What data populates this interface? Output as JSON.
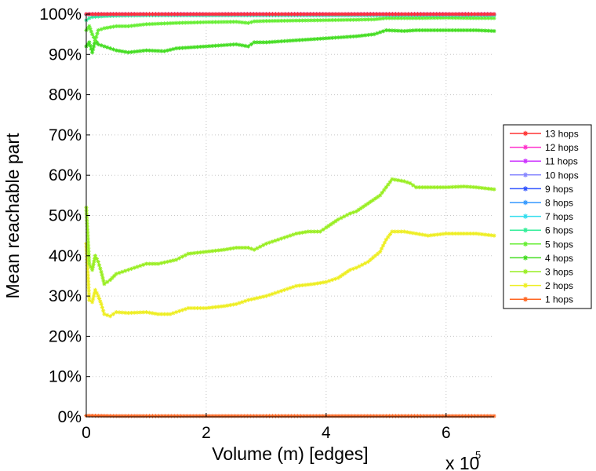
{
  "chart_data": {
    "type": "line",
    "title": "",
    "xlabel": "Volume (m) [edges]",
    "ylabel": "Mean reachable part",
    "x_multiplier_label": "x 10",
    "x_multiplier_exp": "5",
    "xlim": [
      0,
      6.8
    ],
    "ylim": [
      0,
      100
    ],
    "x_unit_scale": 100000,
    "xticks": [
      0,
      2,
      4,
      6
    ],
    "xtick_labels": [
      "0",
      "2",
      "4",
      "6"
    ],
    "yticks": [
      0,
      10,
      20,
      30,
      40,
      50,
      60,
      70,
      80,
      90,
      100
    ],
    "ytick_labels": [
      "0%",
      "10%",
      "20%",
      "30%",
      "40%",
      "50%",
      "60%",
      "70%",
      "80%",
      "90%",
      "100%"
    ],
    "grid": true,
    "legend_position": "right",
    "series": [
      {
        "name": "13 hops",
        "color": "#ff3333",
        "x": [
          0.0,
          0.5,
          1.0,
          2.0,
          3.0,
          4.0,
          5.0,
          6.0,
          6.8
        ],
        "values": [
          100,
          100,
          100,
          100,
          100,
          100,
          100,
          100,
          100
        ]
      },
      {
        "name": "12 hops",
        "color": "#ff33cc",
        "x": [
          0.0,
          0.5,
          1.0,
          2.0,
          3.0,
          4.0,
          5.0,
          6.0,
          6.8
        ],
        "values": [
          100,
          100,
          100,
          100,
          100,
          100,
          100,
          100,
          100
        ]
      },
      {
        "name": "11 hops",
        "color": "#cc33ff",
        "x": [
          0.0,
          0.5,
          1.0,
          2.0,
          3.0,
          4.0,
          5.0,
          6.0,
          6.8
        ],
        "values": [
          100,
          100,
          100,
          100,
          100,
          100,
          100,
          100,
          100
        ]
      },
      {
        "name": "10 hops",
        "color": "#8888ff",
        "x": [
          0.0,
          0.5,
          1.0,
          2.0,
          3.0,
          4.0,
          5.0,
          6.0,
          6.8
        ],
        "values": [
          100,
          100,
          100,
          100,
          100,
          100,
          100,
          100,
          100
        ]
      },
      {
        "name": "9 hops",
        "color": "#3355ff",
        "x": [
          0.0,
          0.5,
          1.0,
          2.0,
          3.0,
          4.0,
          5.0,
          6.0,
          6.8
        ],
        "values": [
          100,
          100,
          100,
          100,
          100,
          100,
          100,
          100,
          100
        ]
      },
      {
        "name": "8 hops",
        "color": "#3399ff",
        "x": [
          0.0,
          0.5,
          1.0,
          2.0,
          3.0,
          4.0,
          5.0,
          6.0,
          6.8
        ],
        "values": [
          100,
          100,
          100,
          100,
          100,
          100,
          100,
          100,
          100
        ]
      },
      {
        "name": "7 hops",
        "color": "#33ddee",
        "x": [
          0.0,
          0.5,
          1.0,
          2.0,
          3.0,
          4.0,
          5.0,
          6.0,
          6.8
        ],
        "values": [
          99.9,
          99.9,
          99.9,
          99.9,
          99.9,
          99.9,
          99.9,
          99.9,
          99.9
        ]
      },
      {
        "name": "6 hops",
        "color": "#33ee99",
        "x": [
          0.0,
          0.05,
          0.1,
          0.3,
          0.5,
          1.0,
          2.0,
          3.0,
          4.0,
          5.0,
          6.0,
          6.8
        ],
        "values": [
          98.5,
          99.0,
          99.3,
          99.5,
          99.6,
          99.7,
          99.7,
          99.7,
          99.7,
          99.7,
          99.7,
          99.7
        ]
      },
      {
        "name": "5 hops",
        "color": "#66ee33",
        "x": [
          0.0,
          0.05,
          0.1,
          0.15,
          0.2,
          0.3,
          0.5,
          0.7,
          1.0,
          1.5,
          2.0,
          2.5,
          2.7,
          2.8,
          3.0,
          3.5,
          4.0,
          4.5,
          4.8,
          5.0,
          5.5,
          6.0,
          6.5,
          6.8
        ],
        "values": [
          96.0,
          97.0,
          95.0,
          93.5,
          96.0,
          96.5,
          97.0,
          97.0,
          97.5,
          97.8,
          98.0,
          98.1,
          97.8,
          98.2,
          98.3,
          98.4,
          98.5,
          98.6,
          98.7,
          99.0,
          99.0,
          99.1,
          99.0,
          99.0
        ]
      },
      {
        "name": "4 hops",
        "color": "#44dd22",
        "x": [
          0.0,
          0.05,
          0.1,
          0.15,
          0.2,
          0.3,
          0.5,
          0.7,
          1.0,
          1.3,
          1.5,
          2.0,
          2.5,
          2.7,
          2.8,
          3.0,
          3.5,
          4.0,
          4.5,
          4.8,
          5.0,
          5.3,
          5.5,
          6.0,
          6.5,
          6.8
        ],
        "values": [
          92.0,
          93.0,
          90.5,
          93.5,
          92.5,
          92.0,
          91.0,
          90.5,
          91.0,
          90.8,
          91.5,
          92.0,
          92.5,
          92.0,
          93.0,
          93.0,
          93.5,
          94.0,
          94.5,
          95.0,
          96.0,
          95.8,
          96.0,
          96.0,
          96.0,
          95.8
        ]
      },
      {
        "name": "3 hops",
        "color": "#99ee22",
        "x": [
          0.0,
          0.05,
          0.1,
          0.15,
          0.2,
          0.25,
          0.3,
          0.4,
          0.5,
          0.7,
          0.9,
          1.0,
          1.2,
          1.5,
          1.7,
          2.0,
          2.3,
          2.5,
          2.7,
          2.8,
          3.0,
          3.3,
          3.5,
          3.7,
          3.9,
          4.0,
          4.2,
          4.4,
          4.5,
          4.7,
          4.9,
          5.0,
          5.1,
          5.3,
          5.4,
          5.5,
          5.7,
          6.0,
          6.3,
          6.5,
          6.8
        ],
        "values": [
          52,
          38,
          36.5,
          40,
          38.5,
          36,
          33,
          34,
          35.5,
          36.5,
          37.5,
          38,
          38,
          39,
          40.5,
          41,
          41.5,
          42,
          42,
          41.5,
          43,
          44.5,
          45.5,
          46,
          46,
          47,
          49,
          50.5,
          51,
          53,
          55,
          57,
          59,
          58.5,
          58,
          57,
          57,
          57,
          57.2,
          57,
          56.5
        ]
      },
      {
        "name": "2 hops",
        "color": "#eeee22",
        "x": [
          0.0,
          0.05,
          0.1,
          0.15,
          0.2,
          0.25,
          0.3,
          0.4,
          0.5,
          0.7,
          1.0,
          1.2,
          1.4,
          1.7,
          2.0,
          2.3,
          2.5,
          2.7,
          3.0,
          3.3,
          3.5,
          3.8,
          4.0,
          4.2,
          4.4,
          4.5,
          4.7,
          4.9,
          5.0,
          5.1,
          5.3,
          5.5,
          5.7,
          6.0,
          6.3,
          6.5,
          6.8
        ],
        "values": [
          43,
          29,
          28.5,
          31.5,
          30,
          28,
          25.5,
          25,
          26,
          25.8,
          26,
          25.5,
          25.5,
          27,
          27,
          27.5,
          28,
          29,
          30,
          31.5,
          32.5,
          33,
          33.5,
          34.5,
          36.5,
          37,
          38.5,
          41,
          44,
          46,
          46,
          45.5,
          45,
          45.5,
          45.5,
          45.5,
          45
        ]
      },
      {
        "name": "1 hops",
        "color": "#ff6622",
        "x": [
          0.0,
          0.5,
          1.0,
          2.0,
          3.0,
          4.0,
          5.0,
          6.0,
          6.8
        ],
        "values": [
          0.3,
          0.2,
          0.2,
          0.2,
          0.2,
          0.2,
          0.2,
          0.2,
          0.2
        ]
      }
    ]
  }
}
